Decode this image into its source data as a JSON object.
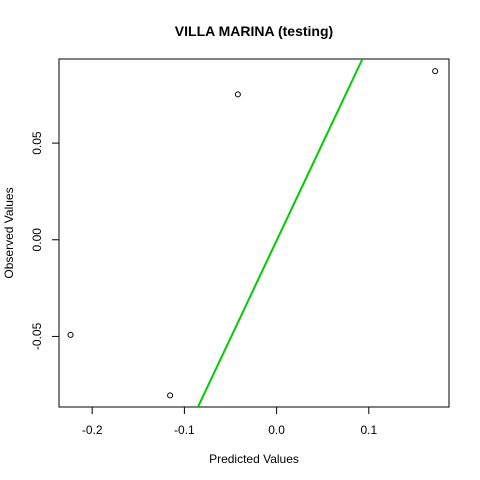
{
  "chart_data": {
    "type": "scatter",
    "title": "VILLA MARINA (testing)",
    "xlabel": "Predicted Values",
    "ylabel": "Observed Values",
    "xlim": [
      -0.236,
      0.187
    ],
    "ylim": [
      -0.0865,
      0.0935
    ],
    "xticks": [
      -0.2,
      -0.1,
      0.0,
      0.1
    ],
    "xtick_labels": [
      "-0.2",
      "-0.1",
      "0.0",
      "0.1"
    ],
    "yticks": [
      -0.05,
      0.0,
      0.05
    ],
    "ytick_labels": [
      "-0.05",
      "0.00",
      "0.05"
    ],
    "points": [
      {
        "x": -0.2235,
        "y": -0.0492
      },
      {
        "x": -0.1155,
        "y": -0.0805
      },
      {
        "x": -0.042,
        "y": 0.0752
      },
      {
        "x": 0.172,
        "y": 0.0872
      }
    ],
    "reference_line": {
      "color": "#00cc00",
      "from": {
        "x": -0.0853,
        "y": -0.0865
      },
      "to": {
        "x": 0.0931,
        "y": 0.0935
      }
    },
    "grid": false,
    "legend": "none",
    "point_color": "#000000"
  }
}
